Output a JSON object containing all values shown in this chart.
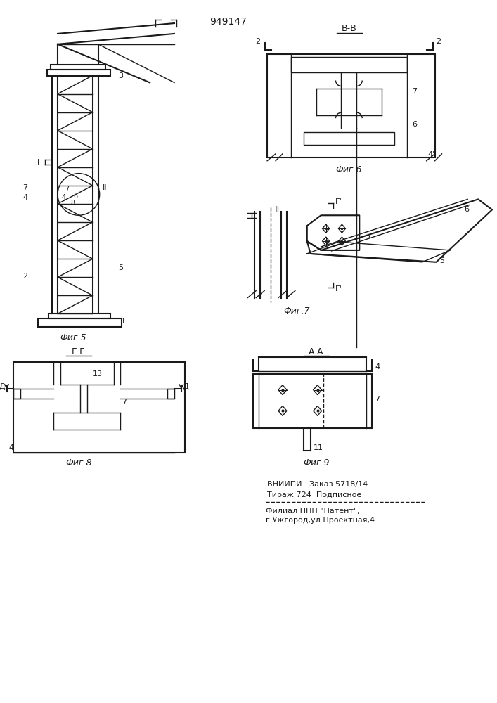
{
  "title": "949147",
  "bg_color": "#ffffff",
  "line_color": "#1a1a1a",
  "fig_width": 7.07,
  "fig_height": 10.0,
  "footer_line1": "ВНИИПИ   Заказ 5718/14",
  "footer_line2": "Тираж 724  Подписное",
  "footer_line3": "Филиал ППП \"Патент\",",
  "footer_line4": "г.Ужгород,ул.Проектная,4"
}
